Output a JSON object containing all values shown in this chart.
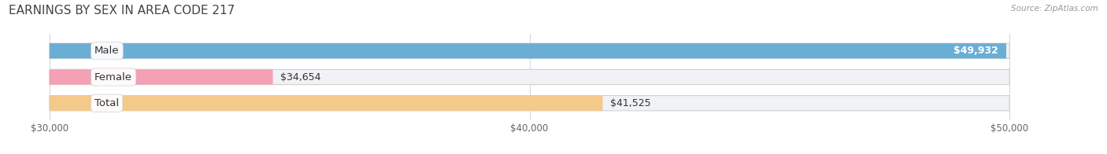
{
  "title": "EARNINGS BY SEX IN AREA CODE 217",
  "source": "Source: ZipAtlas.com",
  "categories": [
    "Male",
    "Female",
    "Total"
  ],
  "values": [
    49932,
    34654,
    41525
  ],
  "bar_colors": [
    "#6aaed6",
    "#f4a0b5",
    "#f5c98a"
  ],
  "bar_border_color": "#d0d0d0",
  "bar_bg_color": "#f0f2f5",
  "xlim_left": 29200,
  "xlim_right": 51800,
  "xstart": 30000,
  "xend": 50000,
  "xticks": [
    30000,
    40000,
    50000
  ],
  "xtick_labels": [
    "$30,000",
    "$40,000",
    "$50,000"
  ],
  "value_labels": [
    "$49,932",
    "$34,654",
    "$41,525"
  ],
  "value_label_inside": [
    true,
    false,
    false
  ],
  "background_color": "#ffffff",
  "title_fontsize": 11,
  "label_fontsize": 9.5,
  "value_fontsize": 9,
  "bar_height": 0.58,
  "figsize": [
    14.06,
    1.96
  ],
  "dpi": 100
}
